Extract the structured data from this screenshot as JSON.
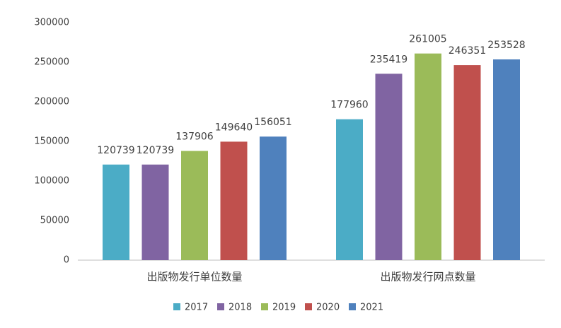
{
  "chart_data": {
    "type": "bar",
    "categories": [
      "出版物发行单位数量",
      "出版物发行网点数量"
    ],
    "series": [
      {
        "name": "2017",
        "color": "#4bacc6",
        "values": [
          120739,
          177960
        ]
      },
      {
        "name": "2018",
        "color": "#8064a2",
        "values": [
          120739,
          235419
        ]
      },
      {
        "name": "2019",
        "color": "#9bbb59",
        "values": [
          137906,
          261005
        ]
      },
      {
        "name": "2020",
        "color": "#c0504d",
        "values": [
          149640,
          246351
        ]
      },
      {
        "name": "2021",
        "color": "#4f81bd",
        "values": [
          156051,
          253528
        ]
      }
    ],
    "ylim": [
      0,
      300000
    ],
    "yticks": [
      0,
      50000,
      100000,
      150000,
      200000,
      250000,
      300000
    ],
    "grid": false,
    "legend": "bottom"
  }
}
